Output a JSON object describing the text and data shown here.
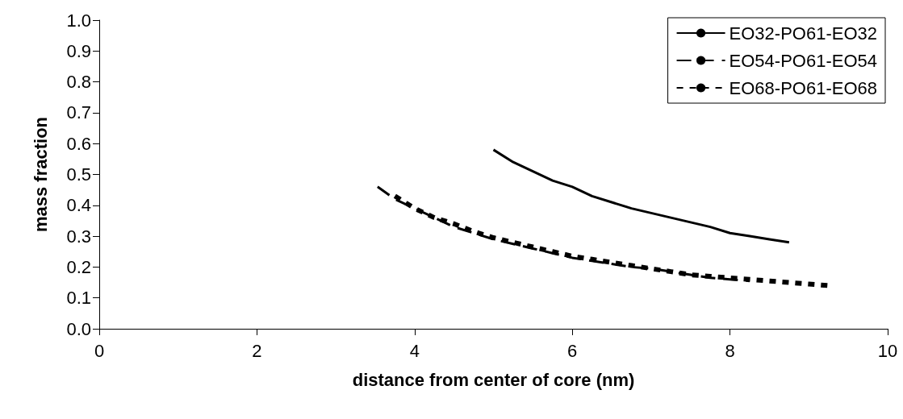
{
  "chart_data": {
    "type": "line",
    "xlabel": "distance from center of core (nm)",
    "ylabel": "mass fraction",
    "xlim": [
      0,
      10
    ],
    "xticks": [
      0,
      2,
      4,
      6,
      8,
      10
    ],
    "ylim": [
      0,
      1
    ],
    "yticks": [
      {
        "value": 0,
        "label": "0.0"
      },
      {
        "value": 0.1,
        "label": "0.1"
      },
      {
        "value": 0.2,
        "label": "0.2"
      },
      {
        "value": 0.3,
        "label": "0.3"
      },
      {
        "value": 0.4,
        "label": "0.4"
      },
      {
        "value": 0.5,
        "label": "0.5"
      },
      {
        "value": 0.6,
        "label": "0.6"
      },
      {
        "value": 0.7,
        "label": "0.7"
      },
      {
        "value": 0.8,
        "label": "0.8"
      },
      {
        "value": 0.9,
        "label": "0.9"
      },
      {
        "value": 1,
        "label": "1.0"
      }
    ],
    "grid": false,
    "legend": "top right",
    "marker": "none",
    "series": [
      {
        "name": "EO32-PO61-EO32",
        "color": "#000000",
        "line_style": "solid",
        "x": [
          5,
          5.25,
          5.5,
          5.75,
          6,
          6.25,
          6.5,
          6.75,
          7,
          7.25,
          7.5,
          7.75,
          8,
          8.25,
          8.5,
          8.75
        ],
        "values": [
          0.58,
          0.54,
          0.51,
          0.48,
          0.46,
          0.43,
          0.41,
          0.39,
          0.375,
          0.36,
          0.345,
          0.33,
          0.31,
          0.3,
          0.29,
          0.28
        ]
      },
      {
        "name": "EO54-PO61-EO54",
        "color": "#000000",
        "line_style": "dashed",
        "x": [
          3.53,
          3.75,
          4,
          4.25,
          4.5,
          4.75,
          5,
          5.25,
          5.5,
          5.75,
          6,
          6.25,
          6.5,
          6.75,
          7,
          7.25,
          7.5,
          7.75,
          8,
          8.25
        ],
        "values": [
          0.46,
          0.42,
          0.39,
          0.36,
          0.33,
          0.31,
          0.29,
          0.275,
          0.26,
          0.245,
          0.23,
          0.22,
          0.21,
          0.2,
          0.195,
          0.185,
          0.175,
          0.165,
          0.16,
          0.155
        ]
      },
      {
        "name": "EO68-PO61-EO68",
        "color": "#000000",
        "line_style": "dotted",
        "x": [
          3.75,
          4,
          4.25,
          4.5,
          4.75,
          5,
          5.25,
          5.5,
          5.75,
          6,
          6.25,
          6.5,
          6.75,
          7,
          7.25,
          7.5,
          7.75,
          8,
          8.25,
          8.5,
          8.75,
          9,
          9.25
        ],
        "values": [
          0.43,
          0.39,
          0.36,
          0.34,
          0.315,
          0.295,
          0.28,
          0.265,
          0.25,
          0.235,
          0.225,
          0.215,
          0.205,
          0.195,
          0.185,
          0.175,
          0.17,
          0.165,
          0.16,
          0.155,
          0.15,
          0.145,
          0.14
        ]
      }
    ]
  }
}
